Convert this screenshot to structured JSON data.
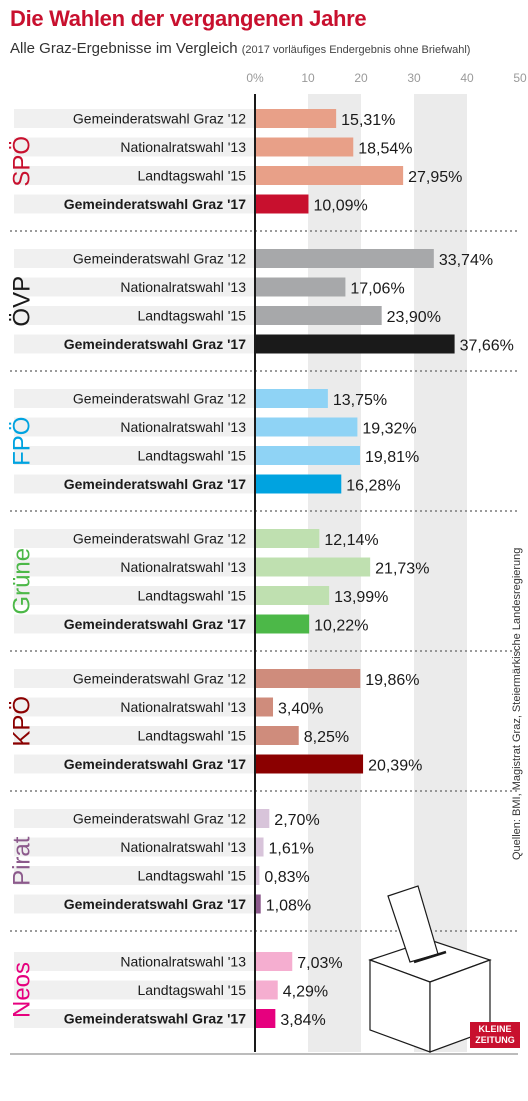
{
  "header": {
    "title": "Die Wahlen der vergangenen Jahre",
    "subtitle": "Alle Graz-Ergebnisse im Vergleich",
    "subtitle_note": "(2017 vorläufiges Endergebnis ohne Briefwahl)"
  },
  "source": "Quellen: BMI, Magistrat Graz, Steiermärkische Landesregierung",
  "logo": {
    "line1": "KLEINE",
    "line2": "ZEITUNG"
  },
  "chart_data": {
    "type": "bar",
    "orientation": "horizontal",
    "xlim": [
      0,
      50
    ],
    "ticks": [
      0,
      10,
      20,
      30,
      40,
      50
    ],
    "tick_labels": [
      "0%",
      "10",
      "20",
      "30",
      "40",
      "50"
    ],
    "grid": true,
    "groups": [
      {
        "name": "SPÖ",
        "color": "#c8102e",
        "light": "#e8a088",
        "bars": [
          {
            "label": "Gemeinderatswahl Graz '12",
            "value": 15.31,
            "value_label": "15,31%"
          },
          {
            "label": "Nationalratswahl '13",
            "value": 18.54,
            "value_label": "18,54%"
          },
          {
            "label": "Landtagswahl '15",
            "value": 27.95,
            "value_label": "27,95%"
          },
          {
            "label": "Gemeinderatswahl Graz '17",
            "value": 10.09,
            "value_label": "10,09%",
            "highlight": true
          }
        ]
      },
      {
        "name": "ÖVP",
        "color": "#1a1a1a",
        "light": "#a7a8aa",
        "bars": [
          {
            "label": "Gemeinderatswahl Graz '12",
            "value": 33.74,
            "value_label": "33,74%"
          },
          {
            "label": "Nationalratswahl '13",
            "value": 17.06,
            "value_label": "17,06%"
          },
          {
            "label": "Landtagswahl '15",
            "value": 23.9,
            "value_label": "23,90%"
          },
          {
            "label": "Gemeinderatswahl Graz '17",
            "value": 37.66,
            "value_label": "37,66%",
            "highlight": true
          }
        ]
      },
      {
        "name": "FPÖ",
        "color": "#00a3e0",
        "light": "#8fd3f5",
        "bars": [
          {
            "label": "Gemeinderatswahl Graz '12",
            "value": 13.75,
            "value_label": "13,75%"
          },
          {
            "label": "Nationalratswahl '13",
            "value": 19.32,
            "value_label": "19,32%"
          },
          {
            "label": "Landtagswahl '15",
            "value": 19.81,
            "value_label": "19,81%"
          },
          {
            "label": "Gemeinderatswahl Graz '17",
            "value": 16.28,
            "value_label": "16,28%",
            "highlight": true
          }
        ]
      },
      {
        "name": "Grüne",
        "color": "#4cb848",
        "light": "#bfe0b0",
        "bars": [
          {
            "label": "Gemeinderatswahl Graz '12",
            "value": 12.14,
            "value_label": "12,14%"
          },
          {
            "label": "Nationalratswahl '13",
            "value": 21.73,
            "value_label": "21,73%"
          },
          {
            "label": "Landtagswahl '15",
            "value": 13.99,
            "value_label": "13,99%"
          },
          {
            "label": "Gemeinderatswahl Graz '17",
            "value": 10.22,
            "value_label": "10,22%",
            "highlight": true
          }
        ]
      },
      {
        "name": "KPÖ",
        "color": "#8b0000",
        "light": "#cf8c7c",
        "bars": [
          {
            "label": "Gemeinderatswahl Graz '12",
            "value": 19.86,
            "value_label": "19,86%"
          },
          {
            "label": "Nationalratswahl '13",
            "value": 3.4,
            "value_label": "3,40%"
          },
          {
            "label": "Landtagswahl '15",
            "value": 8.25,
            "value_label": "8,25%"
          },
          {
            "label": "Gemeinderatswahl Graz '17",
            "value": 20.39,
            "value_label": "20,39%",
            "highlight": true
          }
        ]
      },
      {
        "name": "Pirat",
        "color": "#8c5a8c",
        "light": "#d8c4da",
        "bars": [
          {
            "label": "Gemeinderatswahl Graz '12",
            "value": 2.7,
            "value_label": "2,70%"
          },
          {
            "label": "Nationalratswahl '13",
            "value": 1.61,
            "value_label": "1,61%"
          },
          {
            "label": "Landtagswahl '15",
            "value": 0.83,
            "value_label": "0,83%"
          },
          {
            "label": "Gemeinderatswahl Graz '17",
            "value": 1.08,
            "value_label": "1,08%",
            "highlight": true
          }
        ]
      },
      {
        "name": "Neos",
        "color": "#e6007e",
        "light": "#f5aed0",
        "bars": [
          {
            "label": "Nationalratswahl '13",
            "value": 7.03,
            "value_label": "7,03%"
          },
          {
            "label": "Landtagswahl '15",
            "value": 4.29,
            "value_label": "4,29%"
          },
          {
            "label": "Gemeinderatswahl Graz '17",
            "value": 3.84,
            "value_label": "3,84%",
            "highlight": true
          }
        ]
      }
    ]
  }
}
